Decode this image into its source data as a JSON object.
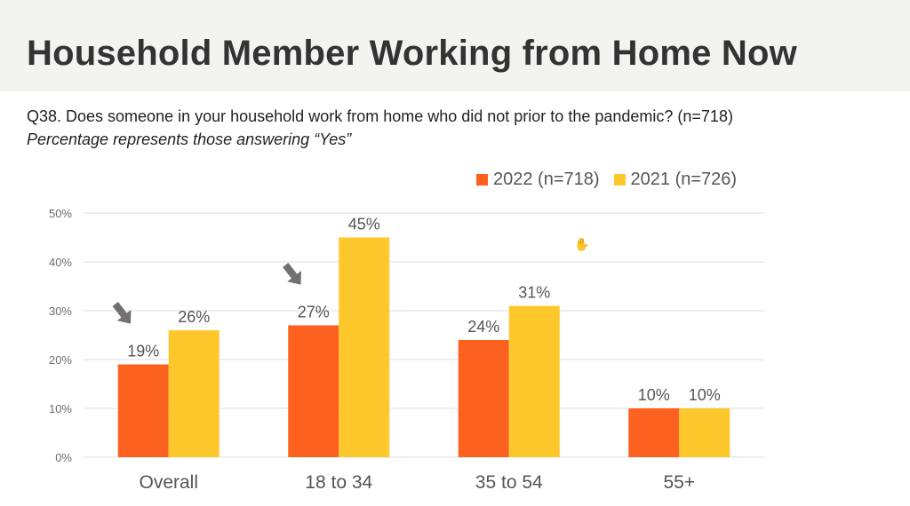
{
  "header": {
    "title": "Household Member Working from Home Now"
  },
  "question": "Q38. Does someone in your household work from home who did not prior to the pandemic? (n=718)",
  "note": "Percentage represents those answering “Yes”",
  "colors": {
    "series_2022": "#fd6120",
    "series_2021": "#fec82d",
    "arrow": "#757070",
    "gridline": "#dedede",
    "title_band": "#f3f3f1"
  },
  "icons": [
    "down-right-arrow-icon",
    "hand-cursor-icon"
  ],
  "chart_data": {
    "type": "bar",
    "categories": [
      "Overall",
      "18 to 34",
      "35 to 54",
      "55+"
    ],
    "series": [
      {
        "name": "2022 (n=718)",
        "values": [
          19,
          27,
          24,
          10
        ],
        "labels": [
          "19%",
          "27%",
          "24%",
          "10%"
        ]
      },
      {
        "name": "2021 (n=726)",
        "values": [
          26,
          45,
          31,
          10
        ],
        "labels": [
          "26%",
          "45%",
          "31%",
          "10%"
        ]
      }
    ],
    "ylim": [
      0,
      50
    ],
    "yticks": [
      0,
      10,
      20,
      30,
      40,
      50
    ],
    "ytick_labels": [
      "0%",
      "10%",
      "20%",
      "30%",
      "40%",
      "50%"
    ],
    "legend_position": "top-right",
    "grid": true,
    "arrows_on_categories": [
      "Overall",
      "18 to 34"
    ]
  }
}
